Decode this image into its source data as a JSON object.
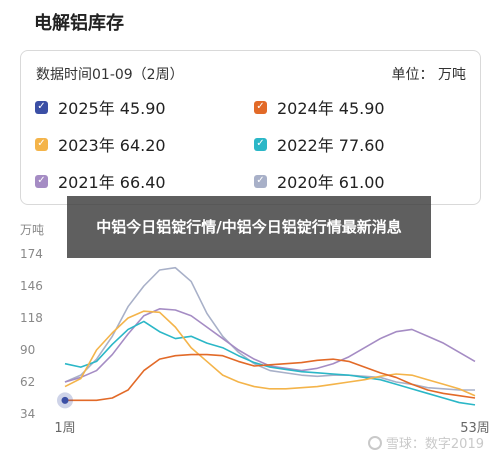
{
  "page": {
    "title": "电解铝库存"
  },
  "legend": {
    "period": "数据时间01-09（2周）",
    "unit": "单位： 万吨",
    "items": [
      {
        "label": "2025年 45.90",
        "color": "#3b4fa5"
      },
      {
        "label": "2024年 45.90",
        "color": "#e26a28"
      },
      {
        "label": "2023年 64.20",
        "color": "#f4b44a"
      },
      {
        "label": "2022年 77.60",
        "color": "#2bb7c7"
      },
      {
        "label": "2021年 66.40",
        "color": "#a58cc4"
      },
      {
        "label": "2020年 61.00",
        "color": "#a8b0c8"
      }
    ]
  },
  "overlay": {
    "text": "中铝今日铝锭行情/中铝今日铝锭行情最新消息"
  },
  "watermark": {
    "text": "雪球：数字2019"
  },
  "chart_data": {
    "type": "line",
    "ylabel": "万吨",
    "yticks": [
      34,
      62,
      90,
      118,
      146,
      174
    ],
    "ylim": [
      34,
      174
    ],
    "xlim": [
      1,
      53
    ],
    "x_tick_labels": [
      "1周",
      "53周"
    ],
    "grid": false,
    "series": [
      {
        "name": "2025年",
        "color": "#3b4fa5",
        "x": [
          1
        ],
        "y": [
          45.9
        ]
      },
      {
        "name": "2024年",
        "color": "#e26a28",
        "x": [
          1,
          3,
          5,
          7,
          9,
          11,
          13,
          15,
          17,
          19,
          21,
          23,
          25,
          27,
          29,
          31,
          33,
          35,
          37,
          39,
          41,
          43,
          45,
          47,
          49,
          51,
          53
        ],
        "y": [
          46,
          46,
          46,
          48,
          55,
          72,
          82,
          85,
          86,
          86,
          85,
          80,
          76,
          77,
          78,
          79,
          81,
          82,
          80,
          75,
          70,
          66,
          60,
          55,
          52,
          50,
          48
        ]
      },
      {
        "name": "2023年",
        "color": "#f4b44a",
        "x": [
          1,
          3,
          5,
          7,
          9,
          11,
          13,
          15,
          17,
          19,
          21,
          23,
          25,
          27,
          29,
          31,
          33,
          35,
          37,
          39,
          41,
          43,
          45,
          47,
          49,
          51,
          53
        ],
        "y": [
          58,
          65,
          90,
          105,
          118,
          124,
          123,
          110,
          92,
          80,
          68,
          62,
          58,
          56,
          56,
          57,
          58,
          60,
          62,
          64,
          67,
          69,
          68,
          64,
          60,
          56,
          50
        ]
      },
      {
        "name": "2022年",
        "color": "#2bb7c7",
        "x": [
          1,
          3,
          5,
          7,
          9,
          11,
          13,
          15,
          17,
          19,
          21,
          23,
          25,
          27,
          29,
          31,
          33,
          35,
          37,
          39,
          41,
          43,
          45,
          47,
          49,
          51,
          53
        ],
        "y": [
          78,
          75,
          80,
          95,
          108,
          115,
          106,
          100,
          102,
          96,
          92,
          85,
          79,
          75,
          73,
          71,
          70,
          69,
          68,
          66,
          64,
          60,
          56,
          52,
          48,
          44,
          42
        ]
      },
      {
        "name": "2021年",
        "color": "#a58cc4",
        "x": [
          1,
          3,
          5,
          7,
          9,
          11,
          13,
          15,
          17,
          19,
          21,
          23,
          25,
          27,
          29,
          31,
          33,
          35,
          37,
          39,
          41,
          43,
          45,
          47,
          49,
          51,
          53
        ],
        "y": [
          62,
          66,
          72,
          86,
          104,
          120,
          126,
          125,
          120,
          110,
          100,
          90,
          82,
          76,
          74,
          72,
          74,
          78,
          84,
          92,
          100,
          106,
          108,
          102,
          96,
          88,
          80
        ]
      },
      {
        "name": "2020年",
        "color": "#a8b0c8",
        "x": [
          1,
          3,
          5,
          7,
          9,
          11,
          13,
          15,
          17,
          19,
          21,
          23,
          25,
          27,
          29,
          31,
          33,
          35,
          37,
          39,
          41,
          43,
          45,
          47,
          49,
          51,
          53
        ],
        "y": [
          62,
          68,
          82,
          102,
          128,
          146,
          160,
          162,
          150,
          122,
          102,
          88,
          78,
          72,
          70,
          68,
          67,
          68,
          68,
          67,
          66,
          62,
          60,
          57,
          56,
          55,
          55
        ]
      }
    ]
  }
}
